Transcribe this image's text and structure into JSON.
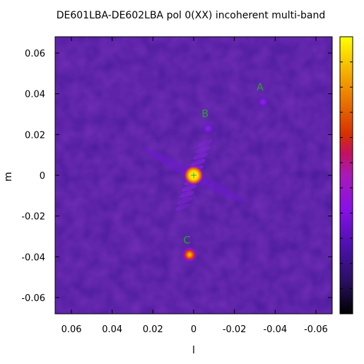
{
  "chart_data": {
    "type": "heatmap",
    "title": "DE601LBA-DE602LBA  pol 0(XX)  incoherent multi-band",
    "xlabel": "l",
    "ylabel": "m",
    "xlim": [
      0.068,
      -0.068
    ],
    "ylim": [
      -0.068,
      0.068
    ],
    "x_ticks": [
      "0.06",
      "0.04",
      "0.02",
      "0",
      "-0.02",
      "-0.04",
      "-0.06"
    ],
    "x_tick_values": [
      0.06,
      0.04,
      0.02,
      0,
      -0.02,
      -0.04,
      -0.06
    ],
    "y_ticks": [
      "0.06",
      "0.04",
      "0.02",
      "0",
      "-0.02",
      "-0.04",
      "-0.06"
    ],
    "y_tick_values": [
      0.06,
      0.04,
      0.02,
      0,
      -0.02,
      -0.04,
      -0.06
    ],
    "colormap": [
      "#000000",
      "#2a0f63",
      "#5d10c6",
      "#8a10e8",
      "#b01ea8",
      "#d23800",
      "#e86a00",
      "#f5a800",
      "#ffd800",
      "#ffff00"
    ],
    "background_color": "#4a1a9c",
    "sources": [
      {
        "label": "A",
        "l": -0.034,
        "m": 0.036
      },
      {
        "label": "B",
        "l": -0.007,
        "m": 0.023
      },
      {
        "label": "C",
        "l": 0.002,
        "m": -0.039
      }
    ],
    "phase_center": {
      "l": 0.0,
      "m": 0.0,
      "marker": "+"
    },
    "colorbar": {
      "ticks": []
    }
  }
}
